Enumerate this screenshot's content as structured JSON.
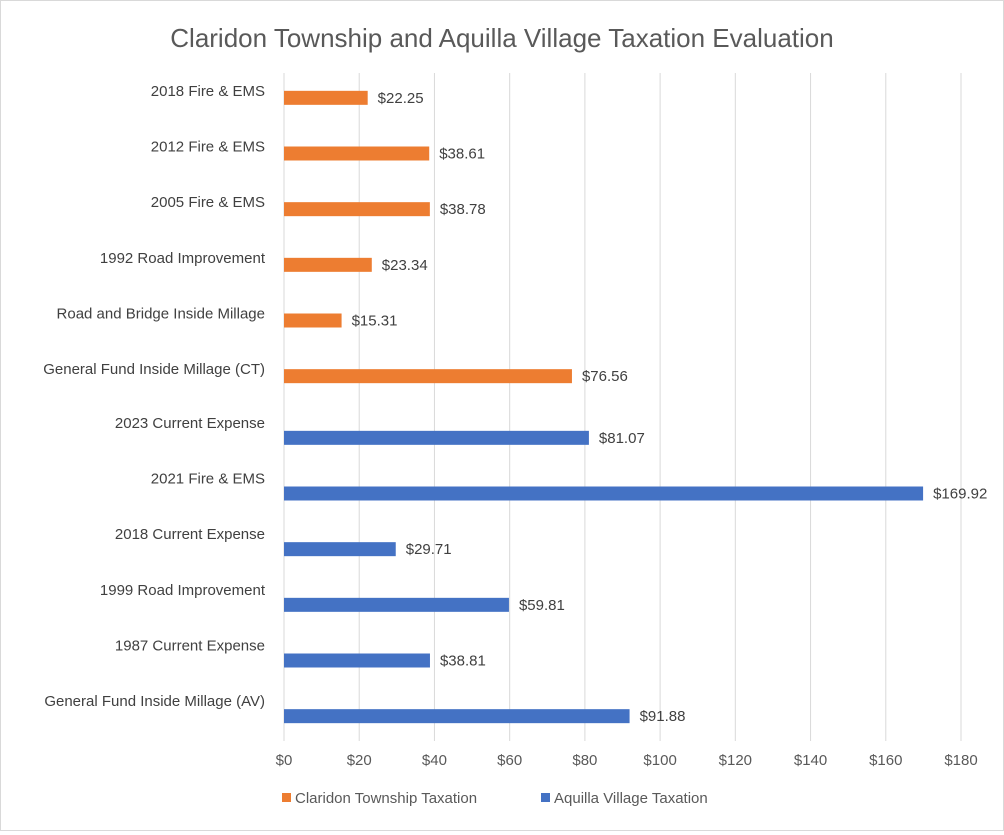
{
  "chart_data": {
    "type": "bar",
    "orientation": "horizontal",
    "title": "Claridon Township and Aquilla Village Taxation Evaluation",
    "xlabel": "",
    "ylabel": "",
    "xlim": [
      0,
      180
    ],
    "x_ticks": [
      0,
      20,
      40,
      60,
      80,
      100,
      120,
      140,
      160,
      180
    ],
    "x_tick_labels": [
      "$0",
      "$20",
      "$40",
      "$60",
      "$80",
      "$100",
      "$120",
      "$140",
      "$160",
      "$180"
    ],
    "grid": true,
    "legend_position": "bottom",
    "categories": [
      "2018 Fire & EMS",
      "2012 Fire & EMS",
      "2005 Fire & EMS",
      "1992 Road Improvement",
      "Road and Bridge Inside Millage",
      "General Fund Inside Millage (CT)",
      "2023 Current Expense",
      "2021 Fire & EMS",
      "2018 Current Expense",
      "1999 Road Improvement",
      "1987 Current Expense",
      "General Fund Inside Millage (AV)"
    ],
    "series": [
      {
        "name": "Claridon Township Taxation",
        "color": "#ED7D31",
        "values": [
          22.25,
          38.61,
          38.78,
          23.34,
          15.31,
          76.56,
          null,
          null,
          null,
          null,
          null,
          null
        ],
        "labels": [
          "$22.25",
          "$38.61",
          "$38.78",
          "$23.34",
          "$15.31",
          "$76.56",
          null,
          null,
          null,
          null,
          null,
          null
        ]
      },
      {
        "name": "Aquilla Village Taxation",
        "color": "#4472C4",
        "values": [
          null,
          null,
          null,
          null,
          null,
          null,
          81.07,
          169.92,
          29.71,
          59.81,
          38.81,
          91.88
        ],
        "labels": [
          null,
          null,
          null,
          null,
          null,
          null,
          "$81.07",
          "$169.92",
          "$29.71",
          "$59.81",
          "$38.81",
          "$91.88"
        ]
      }
    ]
  }
}
